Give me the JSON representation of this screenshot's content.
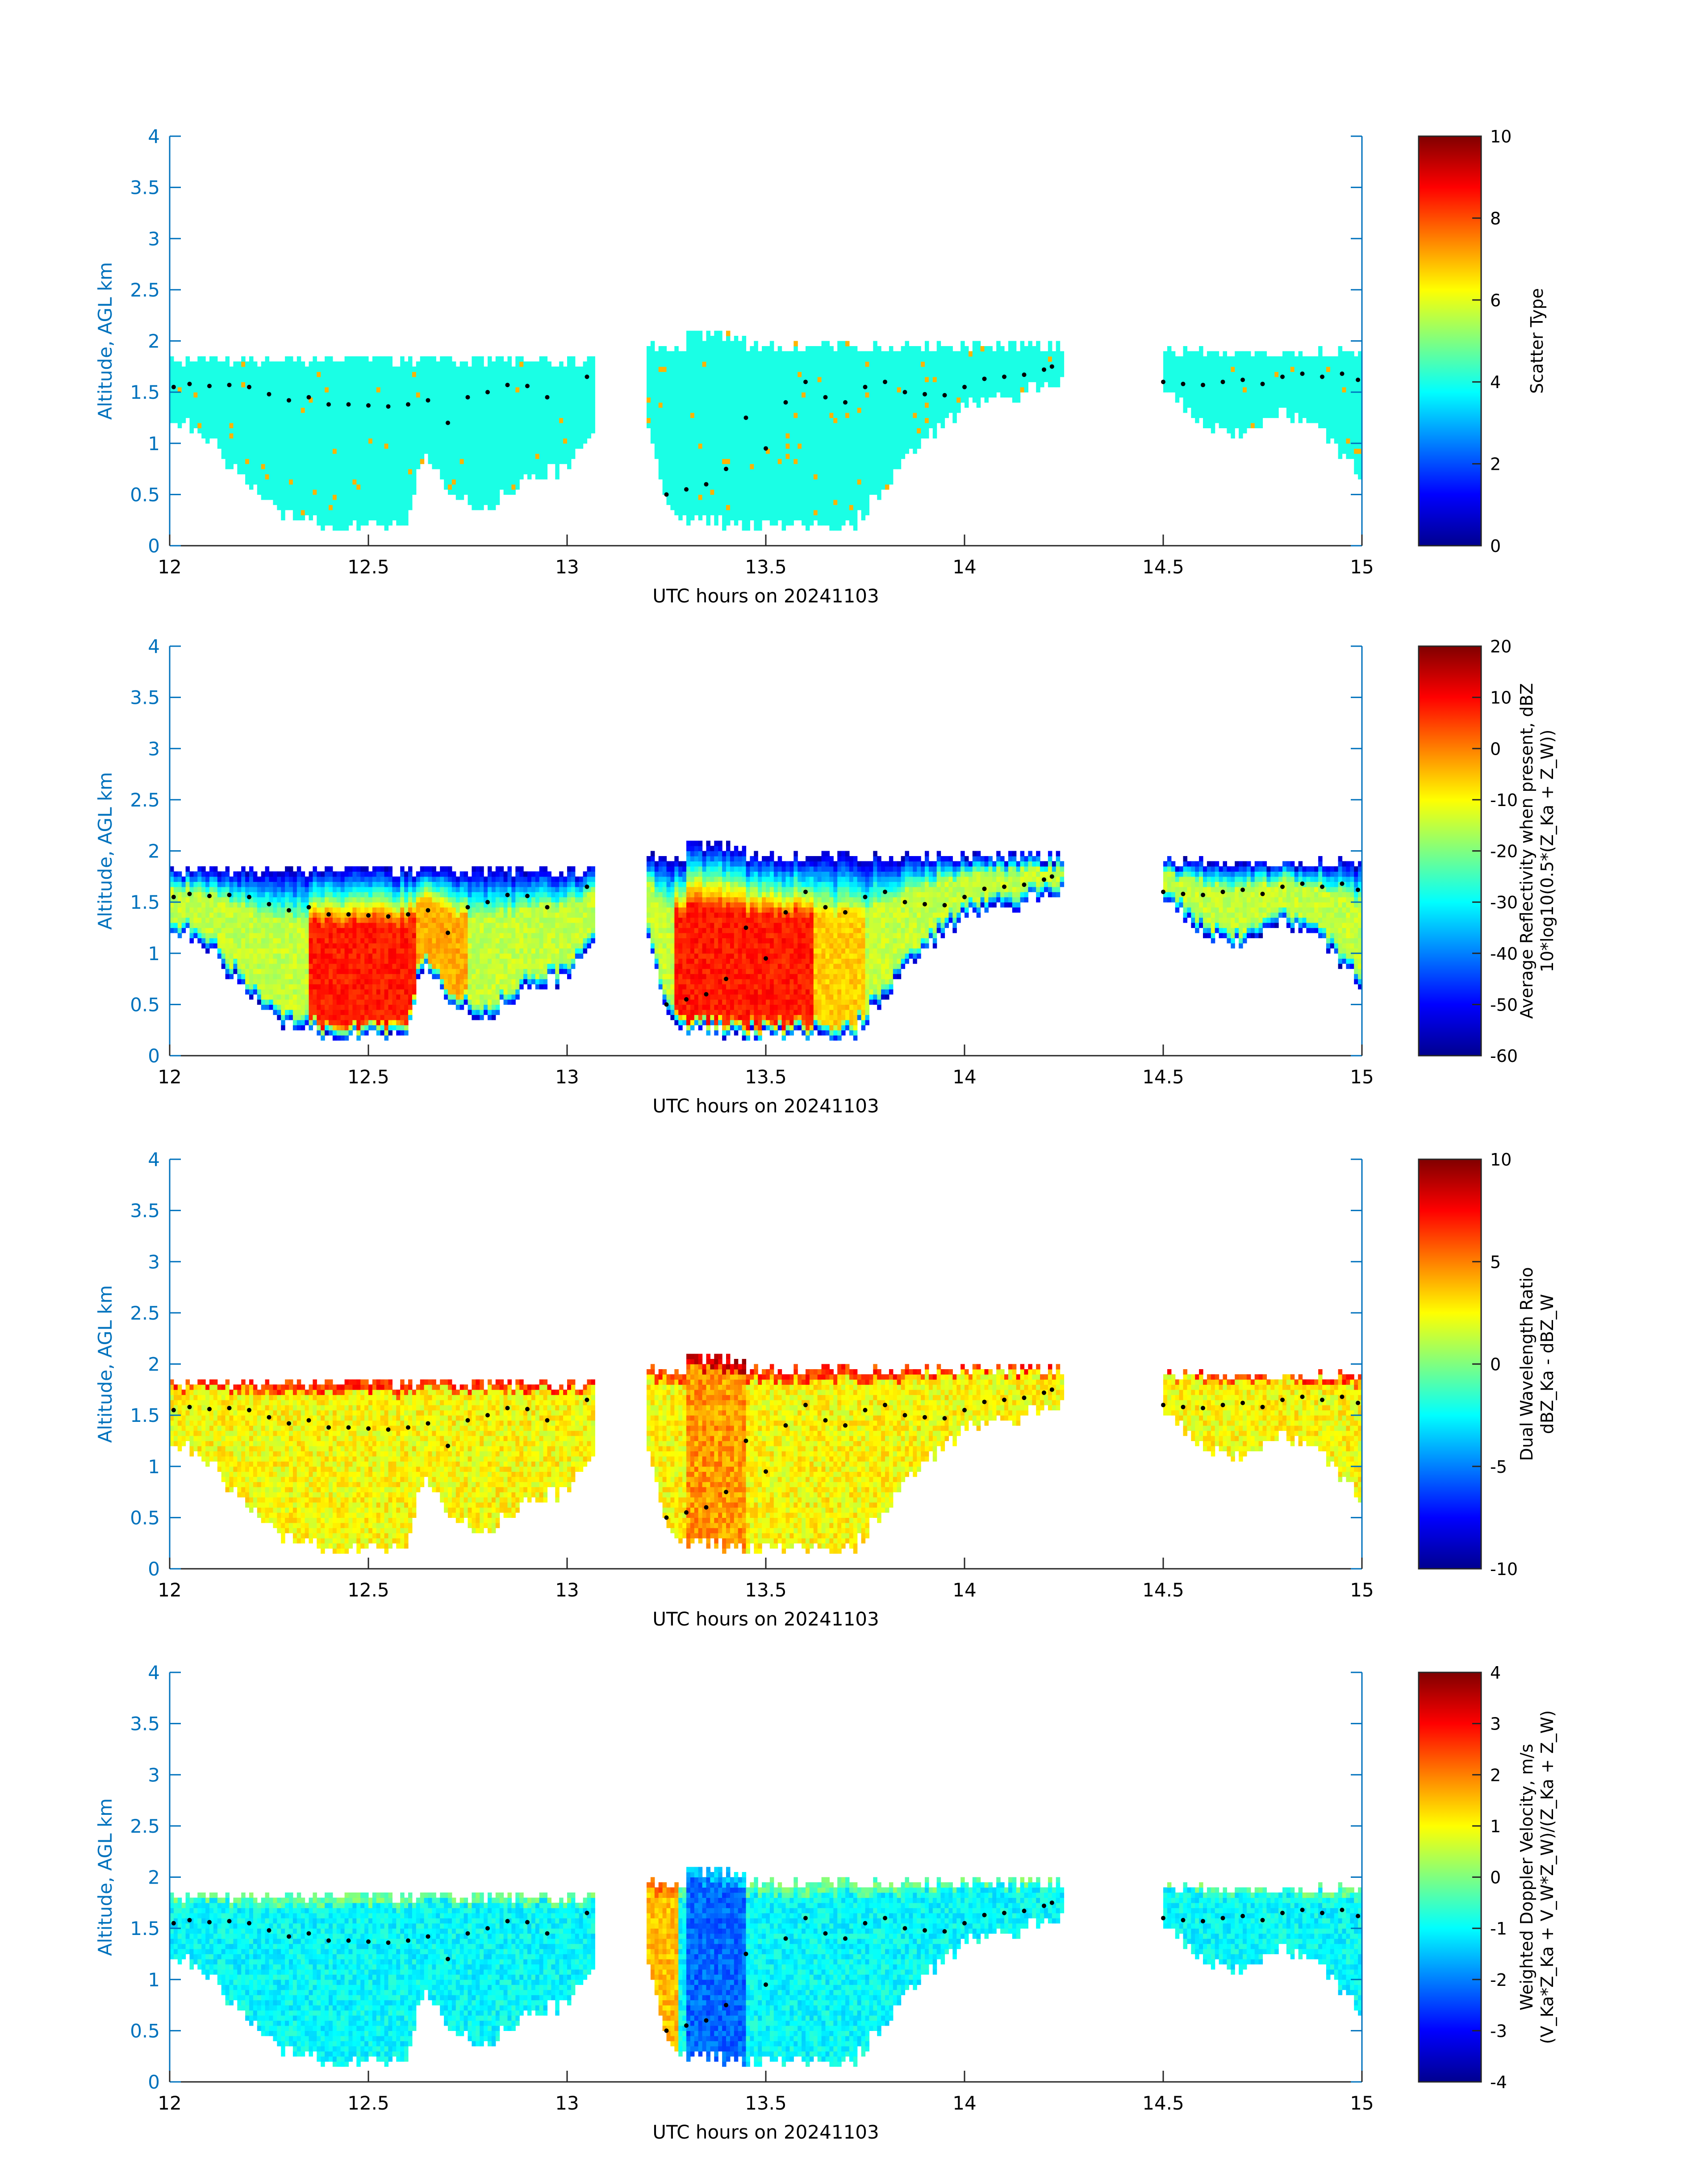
{
  "chart_data": [
    {
      "type": "heatmap",
      "title": "",
      "xlabel": "UTC hours on 20241103",
      "ylabel": "Altitude, AGL km",
      "xlim": [
        12,
        15
      ],
      "ylim": [
        0,
        4
      ],
      "xticks": [
        "12",
        "12.5",
        "13",
        "13.5",
        "14",
        "14.5",
        "15"
      ],
      "yticks": [
        "0",
        "0.5",
        "1",
        "1.5",
        "2",
        "2.5",
        "3",
        "3.5",
        "4"
      ],
      "colorbar": {
        "label_lines": [
          "Scatter Type"
        ],
        "clim": [
          0,
          10
        ],
        "ticks": [
          "0",
          "2",
          "4",
          "6",
          "8",
          "10"
        ],
        "colormap": "jet"
      },
      "field": "scatter",
      "typical_value": 4,
      "rare_value": 7
    },
    {
      "type": "heatmap",
      "title": "",
      "xlabel": "UTC hours on 20241103",
      "ylabel": "Altitude, AGL km",
      "xlim": [
        12,
        15
      ],
      "ylim": [
        0,
        4
      ],
      "xticks": [
        "12",
        "12.5",
        "13",
        "13.5",
        "14",
        "14.5",
        "15"
      ],
      "yticks": [
        "0",
        "0.5",
        "1",
        "1.5",
        "2",
        "2.5",
        "3",
        "3.5",
        "4"
      ],
      "colorbar": {
        "label_lines": [
          "Average Reflectivity when present, dBZ",
          "10*log10(0.5*(Z_Ka + Z_W))"
        ],
        "clim": [
          -60,
          20
        ],
        "ticks": [
          "-60",
          "-50",
          "-40",
          "-30",
          "-20",
          "-10",
          "0",
          "10",
          "20"
        ],
        "colormap": "jet"
      },
      "field": "reflectivity",
      "core_value": 8,
      "edge_value": -55
    },
    {
      "type": "heatmap",
      "title": "",
      "xlabel": "UTC hours on 20241103",
      "ylabel": "Altitude, AGL km",
      "xlim": [
        12,
        15
      ],
      "ylim": [
        0,
        4
      ],
      "xticks": [
        "12",
        "12.5",
        "13",
        "13.5",
        "14",
        "14.5",
        "15"
      ],
      "yticks": [
        "0",
        "0.5",
        "1",
        "1.5",
        "2",
        "2.5",
        "3",
        "3.5",
        "4"
      ],
      "colorbar": {
        "label_lines": [
          "Dual Wavelength Ratio",
          "dBZ_Ka - dBZ_W"
        ],
        "clim": [
          -10,
          10
        ],
        "ticks": [
          "-10",
          "-5",
          "0",
          "5",
          "10"
        ],
        "colormap": "jet"
      },
      "field": "dwr",
      "typical_value": 2.5
    },
    {
      "type": "heatmap",
      "title": "",
      "xlabel": "UTC hours on 20241103",
      "ylabel": "Altitude, AGL km",
      "xlim": [
        12,
        15
      ],
      "ylim": [
        0,
        4
      ],
      "xticks": [
        "12",
        "12.5",
        "13",
        "13.5",
        "14",
        "14.5",
        "15"
      ],
      "yticks": [
        "0",
        "0.5",
        "1",
        "1.5",
        "2",
        "2.5",
        "3",
        "3.5",
        "4"
      ],
      "colorbar": {
        "label_lines": [
          "Weighted Doppler Velocity, m/s",
          "(V_Ka*Z_Ka + V_W*Z_W)/(Z_Ka + Z_W)"
        ],
        "clim": [
          -4,
          4
        ],
        "ticks": [
          "-4",
          "-3",
          "-2",
          "-1",
          "0",
          "1",
          "2",
          "3",
          "4"
        ],
        "colormap": "jet"
      },
      "field": "velocity",
      "typical_value": -1
    }
  ],
  "cloud_mask": {
    "segments": [
      {
        "t": [
          12.0,
          13.07
        ],
        "top_km": 1.87,
        "base_km": [
          [
            12.0,
            1.25
          ],
          [
            12.1,
            1.05
          ],
          [
            12.2,
            0.6
          ],
          [
            12.3,
            0.3
          ],
          [
            12.4,
            0.2
          ],
          [
            12.6,
            0.2
          ],
          [
            12.63,
            0.9
          ],
          [
            12.7,
            0.55
          ],
          [
            12.8,
            0.35
          ],
          [
            12.9,
            0.7
          ],
          [
            13.0,
            0.75
          ],
          [
            13.07,
            1.1
          ]
        ]
      },
      {
        "t": [
          13.2,
          14.25
        ],
        "top_km": 2.0,
        "base_km": [
          [
            13.2,
            1.3
          ],
          [
            13.25,
            0.4
          ],
          [
            13.3,
            0.25
          ],
          [
            13.4,
            0.2
          ],
          [
            13.72,
            0.2
          ],
          [
            13.8,
            0.6
          ],
          [
            13.9,
            1.05
          ],
          [
            14.0,
            1.35
          ],
          [
            14.25,
            1.6
          ]
        ]
      },
      {
        "t": [
          14.5,
          15.0
        ],
        "top_km": 1.95,
        "base_km": [
          [
            14.5,
            1.55
          ],
          [
            14.6,
            1.2
          ],
          [
            14.7,
            1.05
          ],
          [
            14.8,
            1.3
          ],
          [
            14.9,
            1.1
          ],
          [
            15.0,
            0.7
          ]
        ]
      }
    ]
  },
  "cloud_top_markers": [
    {
      "t": 12.01,
      "km": 1.55
    },
    {
      "t": 12.05,
      "km": 1.58
    },
    {
      "t": 12.1,
      "km": 1.56
    },
    {
      "t": 12.15,
      "km": 1.57
    },
    {
      "t": 12.2,
      "km": 1.55
    },
    {
      "t": 12.25,
      "km": 1.48
    },
    {
      "t": 12.3,
      "km": 1.42
    },
    {
      "t": 12.35,
      "km": 1.45
    },
    {
      "t": 12.4,
      "km": 1.38
    },
    {
      "t": 12.45,
      "km": 1.38
    },
    {
      "t": 12.5,
      "km": 1.37
    },
    {
      "t": 12.55,
      "km": 1.36
    },
    {
      "t": 12.6,
      "km": 1.38
    },
    {
      "t": 12.65,
      "km": 1.42
    },
    {
      "t": 12.7,
      "km": 1.2
    },
    {
      "t": 12.75,
      "km": 1.45
    },
    {
      "t": 12.8,
      "km": 1.5
    },
    {
      "t": 12.85,
      "km": 1.57
    },
    {
      "t": 12.9,
      "km": 1.56
    },
    {
      "t": 12.95,
      "km": 1.45
    },
    {
      "t": 13.05,
      "km": 1.65
    },
    {
      "t": 13.25,
      "km": 0.5
    },
    {
      "t": 13.3,
      "km": 0.55
    },
    {
      "t": 13.35,
      "km": 0.6
    },
    {
      "t": 13.4,
      "km": 0.75
    },
    {
      "t": 13.45,
      "km": 1.25
    },
    {
      "t": 13.5,
      "km": 0.95
    },
    {
      "t": 13.55,
      "km": 1.4
    },
    {
      "t": 13.6,
      "km": 1.6
    },
    {
      "t": 13.65,
      "km": 1.45
    },
    {
      "t": 13.7,
      "km": 1.4
    },
    {
      "t": 13.75,
      "km": 1.55
    },
    {
      "t": 13.8,
      "km": 1.6
    },
    {
      "t": 13.85,
      "km": 1.5
    },
    {
      "t": 13.9,
      "km": 1.48
    },
    {
      "t": 13.95,
      "km": 1.47
    },
    {
      "t": 14.0,
      "km": 1.55
    },
    {
      "t": 14.05,
      "km": 1.63
    },
    {
      "t": 14.1,
      "km": 1.65
    },
    {
      "t": 14.15,
      "km": 1.67
    },
    {
      "t": 14.2,
      "km": 1.72
    },
    {
      "t": 14.22,
      "km": 1.75
    },
    {
      "t": 14.5,
      "km": 1.6
    },
    {
      "t": 14.55,
      "km": 1.58
    },
    {
      "t": 14.6,
      "km": 1.57
    },
    {
      "t": 14.65,
      "km": 1.6
    },
    {
      "t": 14.7,
      "km": 1.62
    },
    {
      "t": 14.75,
      "km": 1.58
    },
    {
      "t": 14.8,
      "km": 1.65
    },
    {
      "t": 14.85,
      "km": 1.68
    },
    {
      "t": 14.9,
      "km": 1.65
    },
    {
      "t": 14.95,
      "km": 1.68
    },
    {
      "t": 14.99,
      "km": 1.62
    }
  ],
  "colors": {
    "axis_blue": "#0072BD",
    "frame_black": "#262626",
    "marker": "#000000"
  }
}
